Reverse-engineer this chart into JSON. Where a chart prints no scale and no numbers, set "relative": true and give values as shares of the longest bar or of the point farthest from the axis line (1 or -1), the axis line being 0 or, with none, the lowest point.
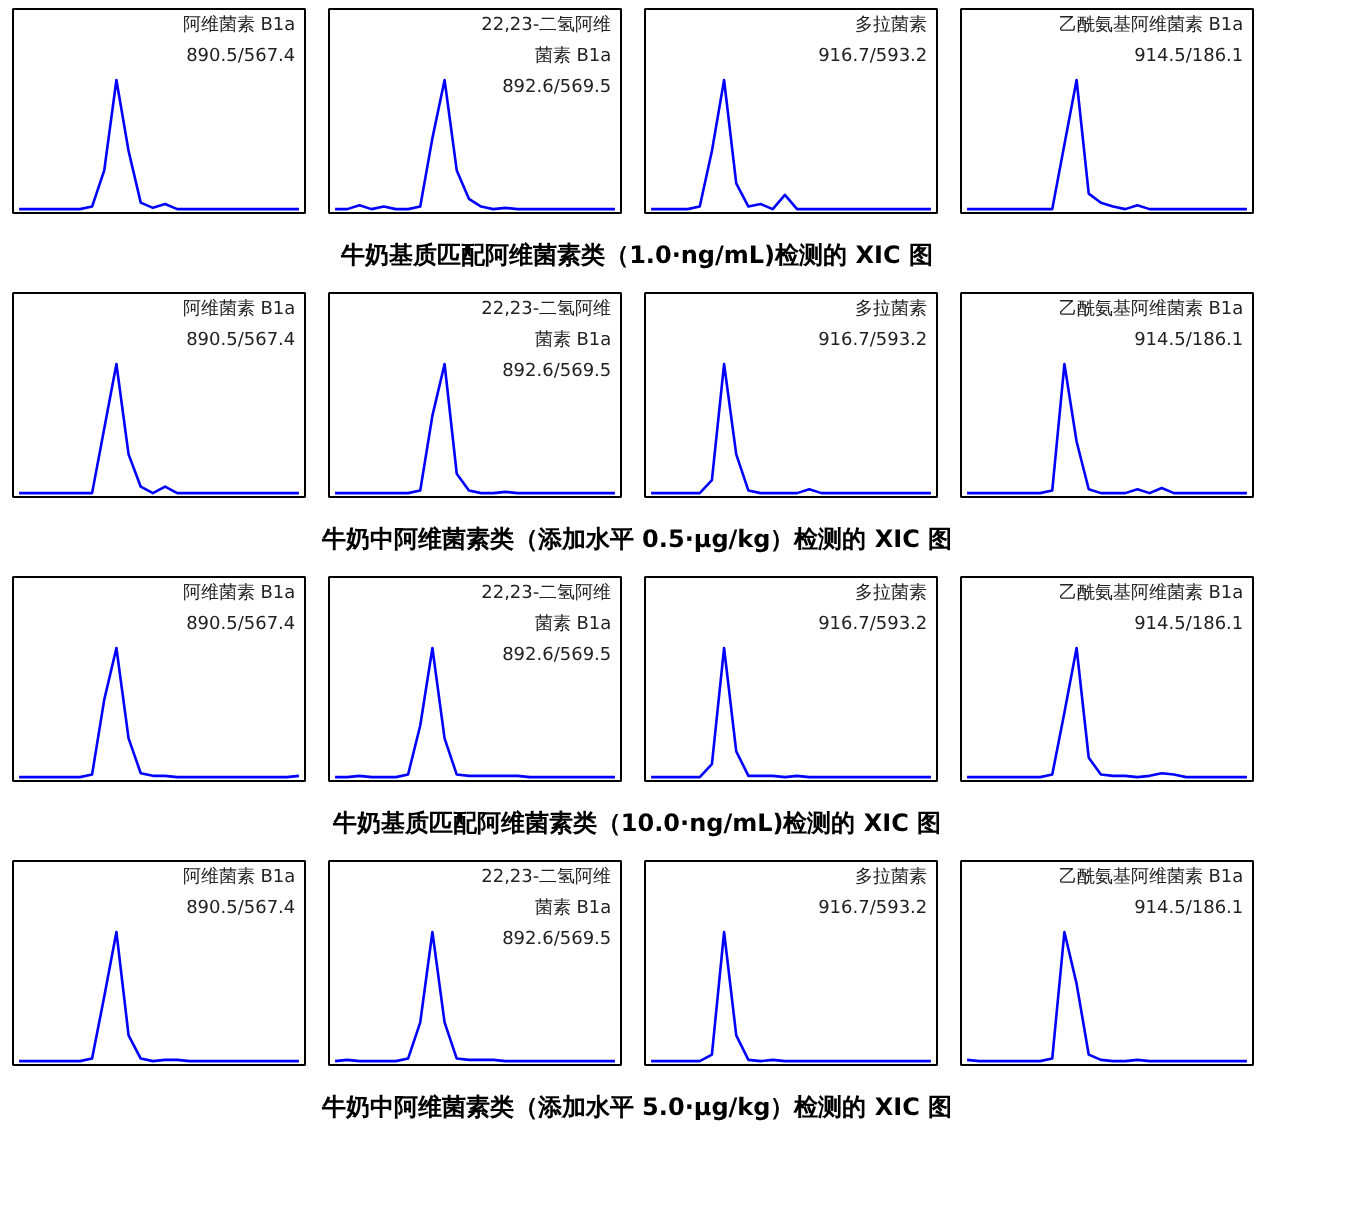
{
  "chart_data": [
    {
      "type": "line",
      "relative": true,
      "tick_labels": false,
      "color": "#0000ff",
      "categories": [
        null,
        null,
        null,
        null,
        null,
        null,
        null,
        null,
        null,
        null,
        null,
        null,
        null,
        null,
        null,
        null,
        null,
        null,
        null,
        null,
        null,
        null,
        null,
        null
      ],
      "values": [
        0,
        0,
        0,
        0,
        0,
        0,
        0.02,
        0.3,
        1,
        0.45,
        0.05,
        0.01,
        0.04,
        0,
        0,
        0,
        0,
        0,
        0,
        0,
        0,
        0,
        0,
        0
      ],
      "annotations": [
        "阿维菌素 B1a",
        "890.5/567.4"
      ]
    },
    {
      "type": "line",
      "relative": true,
      "tick_labels": false,
      "color": "#0000ff",
      "categories": [
        null,
        null,
        null,
        null,
        null,
        null,
        null,
        null,
        null,
        null,
        null,
        null,
        null,
        null,
        null,
        null,
        null,
        null,
        null,
        null,
        null,
        null,
        null,
        null
      ],
      "values": [
        0,
        0,
        0.03,
        0,
        0.02,
        0,
        0,
        0.02,
        0.55,
        1,
        0.3,
        0.08,
        0.02,
        0,
        0.01,
        0,
        0,
        0,
        0,
        0,
        0,
        0,
        0,
        0
      ],
      "annotations": [
        "22,23-二氢阿维",
        "菌素 B1a",
        "892.6/569.5"
      ]
    },
    {
      "type": "line",
      "relative": true,
      "tick_labels": false,
      "color": "#0000ff",
      "categories": [
        null,
        null,
        null,
        null,
        null,
        null,
        null,
        null,
        null,
        null,
        null,
        null,
        null,
        null,
        null,
        null,
        null,
        null,
        null,
        null,
        null,
        null,
        null,
        null
      ],
      "values": [
        0,
        0,
        0,
        0,
        0.02,
        0.45,
        1,
        0.2,
        0.02,
        0.04,
        0,
        0.11,
        0,
        0,
        0,
        0,
        0,
        0,
        0,
        0,
        0,
        0,
        0,
        0
      ],
      "annotations": [
        "多拉菌素",
        "916.7/593.2"
      ]
    },
    {
      "type": "line",
      "relative": true,
      "tick_labels": false,
      "color": "#0000ff",
      "categories": [
        null,
        null,
        null,
        null,
        null,
        null,
        null,
        null,
        null,
        null,
        null,
        null,
        null,
        null,
        null,
        null,
        null,
        null,
        null,
        null,
        null,
        null,
        null,
        null
      ],
      "values": [
        0,
        0,
        0,
        0,
        0,
        0,
        0,
        0,
        0.5,
        1,
        0.12,
        0.05,
        0.02,
        0,
        0.03,
        0,
        0,
        0,
        0,
        0,
        0,
        0,
        0,
        0
      ],
      "annotations": [
        "乙酰氨基阿维菌素 B1a",
        "914.5/186.1"
      ]
    },
    {
      "type": "other",
      "title": "牛奶基质匹配阿维菌素类（1.0·ng/mL)检测的 XIC 图"
    },
    {
      "type": "line",
      "relative": true,
      "tick_labels": false,
      "color": "#0000ff",
      "categories": [
        null,
        null,
        null,
        null,
        null,
        null,
        null,
        null,
        null,
        null,
        null,
        null,
        null,
        null,
        null,
        null,
        null,
        null,
        null,
        null,
        null,
        null,
        null,
        null
      ],
      "values": [
        0,
        0,
        0,
        0,
        0,
        0,
        0,
        0.5,
        1,
        0.3,
        0.05,
        0,
        0.05,
        0,
        0,
        0,
        0,
        0,
        0,
        0,
        0,
        0,
        0,
        0
      ],
      "annotations": [
        "阿维菌素 B1a",
        "890.5/567.4"
      ]
    },
    {
      "type": "line",
      "relative": true,
      "tick_labels": false,
      "color": "#0000ff",
      "categories": [
        null,
        null,
        null,
        null,
        null,
        null,
        null,
        null,
        null,
        null,
        null,
        null,
        null,
        null,
        null,
        null,
        null,
        null,
        null,
        null,
        null,
        null,
        null,
        null
      ],
      "values": [
        0,
        0,
        0,
        0,
        0,
        0,
        0,
        0.02,
        0.6,
        1,
        0.15,
        0.02,
        0,
        0,
        0.01,
        0,
        0,
        0,
        0,
        0,
        0,
        0,
        0,
        0
      ],
      "annotations": [
        "22,23-二氢阿维",
        "菌素 B1a",
        "892.6/569.5"
      ]
    },
    {
      "type": "line",
      "relative": true,
      "tick_labels": false,
      "color": "#0000ff",
      "categories": [
        null,
        null,
        null,
        null,
        null,
        null,
        null,
        null,
        null,
        null,
        null,
        null,
        null,
        null,
        null,
        null,
        null,
        null,
        null,
        null,
        null,
        null,
        null,
        null
      ],
      "values": [
        0,
        0,
        0,
        0,
        0,
        0.1,
        1,
        0.3,
        0.02,
        0,
        0,
        0,
        0,
        0.03,
        0,
        0,
        0,
        0,
        0,
        0,
        0,
        0,
        0,
        0
      ],
      "annotations": [
        "多拉菌素",
        "916.7/593.2"
      ]
    },
    {
      "type": "line",
      "relative": true,
      "tick_labels": false,
      "color": "#0000ff",
      "categories": [
        null,
        null,
        null,
        null,
        null,
        null,
        null,
        null,
        null,
        null,
        null,
        null,
        null,
        null,
        null,
        null,
        null,
        null,
        null,
        null,
        null,
        null,
        null,
        null
      ],
      "values": [
        0,
        0,
        0,
        0,
        0,
        0,
        0,
        0.02,
        1,
        0.4,
        0.03,
        0,
        0,
        0,
        0.03,
        0,
        0.04,
        0,
        0,
        0,
        0,
        0,
        0,
        0
      ],
      "annotations": [
        "乙酰氨基阿维菌素 B1a",
        "914.5/186.1"
      ]
    },
    {
      "type": "other",
      "title": "牛奶中阿维菌素类（添加水平 0.5·μg/kg）检测的 XIC 图"
    },
    {
      "type": "line",
      "relative": true,
      "tick_labels": false,
      "color": "#0000ff",
      "categories": [
        null,
        null,
        null,
        null,
        null,
        null,
        null,
        null,
        null,
        null,
        null,
        null,
        null,
        null,
        null,
        null,
        null,
        null,
        null,
        null,
        null,
        null,
        null,
        null
      ],
      "values": [
        0,
        0,
        0,
        0,
        0,
        0,
        0.02,
        0.6,
        1,
        0.3,
        0.03,
        0.01,
        0.01,
        0,
        0,
        0,
        0,
        0,
        0,
        0,
        0,
        0,
        0,
        0.01
      ],
      "annotations": [
        "阿维菌素 B1a",
        "890.5/567.4"
      ]
    },
    {
      "type": "line",
      "relative": true,
      "tick_labels": false,
      "color": "#0000ff",
      "categories": [
        null,
        null,
        null,
        null,
        null,
        null,
        null,
        null,
        null,
        null,
        null,
        null,
        null,
        null,
        null,
        null,
        null,
        null,
        null,
        null,
        null,
        null,
        null,
        null
      ],
      "values": [
        0,
        0,
        0.01,
        0,
        0,
        0,
        0.02,
        0.4,
        1,
        0.3,
        0.02,
        0.01,
        0.01,
        0.01,
        0.01,
        0.01,
        0,
        0,
        0,
        0,
        0,
        0,
        0,
        0
      ],
      "annotations": [
        "22,23-二氢阿维",
        "菌素 B1a",
        "892.6/569.5"
      ]
    },
    {
      "type": "line",
      "relative": true,
      "tick_labels": false,
      "color": "#0000ff",
      "categories": [
        null,
        null,
        null,
        null,
        null,
        null,
        null,
        null,
        null,
        null,
        null,
        null,
        null,
        null,
        null,
        null,
        null,
        null,
        null,
        null,
        null,
        null,
        null,
        null
      ],
      "values": [
        0,
        0,
        0,
        0,
        0,
        0.1,
        1,
        0.2,
        0.01,
        0.01,
        0.01,
        0,
        0.01,
        0,
        0,
        0,
        0,
        0,
        0,
        0,
        0,
        0,
        0,
        0
      ],
      "annotations": [
        "多拉菌素",
        "916.7/593.2"
      ]
    },
    {
      "type": "line",
      "relative": true,
      "tick_labels": false,
      "color": "#0000ff",
      "categories": [
        null,
        null,
        null,
        null,
        null,
        null,
        null,
        null,
        null,
        null,
        null,
        null,
        null,
        null,
        null,
        null,
        null,
        null,
        null,
        null,
        null,
        null,
        null,
        null
      ],
      "values": [
        0,
        0,
        0,
        0,
        0,
        0,
        0,
        0.02,
        0.5,
        1,
        0.15,
        0.02,
        0.01,
        0.01,
        0,
        0.01,
        0.03,
        0.02,
        0,
        0,
        0,
        0,
        0,
        0
      ],
      "annotations": [
        "乙酰氨基阿维菌素 B1a",
        "914.5/186.1"
      ]
    },
    {
      "type": "other",
      "title": "牛奶基质匹配阿维菌素类（10.0·ng/mL)检测的 XIC 图"
    },
    {
      "type": "line",
      "relative": true,
      "tick_labels": false,
      "color": "#0000ff",
      "categories": [
        null,
        null,
        null,
        null,
        null,
        null,
        null,
        null,
        null,
        null,
        null,
        null,
        null,
        null,
        null,
        null,
        null,
        null,
        null,
        null,
        null,
        null,
        null,
        null
      ],
      "values": [
        0,
        0,
        0,
        0,
        0,
        0,
        0.02,
        0.5,
        1,
        0.2,
        0.02,
        0,
        0.01,
        0.01,
        0,
        0,
        0,
        0,
        0,
        0,
        0,
        0,
        0,
        0
      ],
      "annotations": [
        "阿维菌素 B1a",
        "890.5/567.4"
      ]
    },
    {
      "type": "line",
      "relative": true,
      "tick_labels": false,
      "color": "#0000ff",
      "categories": [
        null,
        null,
        null,
        null,
        null,
        null,
        null,
        null,
        null,
        null,
        null,
        null,
        null,
        null,
        null,
        null,
        null,
        null,
        null,
        null,
        null,
        null,
        null,
        null
      ],
      "values": [
        0,
        0.01,
        0,
        0,
        0,
        0,
        0.02,
        0.3,
        1,
        0.3,
        0.02,
        0.01,
        0.01,
        0.01,
        0,
        0,
        0,
        0,
        0,
        0,
        0,
        0,
        0,
        0
      ],
      "annotations": [
        "22,23-二氢阿维",
        "菌素 B1a",
        "892.6/569.5"
      ]
    },
    {
      "type": "line",
      "relative": true,
      "tick_labels": false,
      "color": "#0000ff",
      "categories": [
        null,
        null,
        null,
        null,
        null,
        null,
        null,
        null,
        null,
        null,
        null,
        null,
        null,
        null,
        null,
        null,
        null,
        null,
        null,
        null,
        null,
        null,
        null,
        null
      ],
      "values": [
        0,
        0,
        0,
        0,
        0,
        0.05,
        1,
        0.2,
        0.01,
        0,
        0.01,
        0,
        0,
        0,
        0,
        0,
        0,
        0,
        0,
        0,
        0,
        0,
        0,
        0
      ],
      "annotations": [
        "多拉菌素",
        "916.7/593.2"
      ]
    },
    {
      "type": "line",
      "relative": true,
      "tick_labels": false,
      "color": "#0000ff",
      "categories": [
        null,
        null,
        null,
        null,
        null,
        null,
        null,
        null,
        null,
        null,
        null,
        null,
        null,
        null,
        null,
        null,
        null,
        null,
        null,
        null,
        null,
        null,
        null,
        null
      ],
      "values": [
        0.01,
        0,
        0,
        0,
        0,
        0,
        0,
        0.02,
        1,
        0.6,
        0.05,
        0.01,
        0,
        0,
        0.01,
        0,
        0,
        0,
        0,
        0,
        0,
        0,
        0,
        0
      ],
      "annotations": [
        "乙酰氨基阿维菌素 B1a",
        "914.5/186.1"
      ]
    },
    {
      "type": "other",
      "title": "牛奶中阿维菌素类（添加水平 5.0·μg/kg）检测的 XIC 图"
    }
  ]
}
